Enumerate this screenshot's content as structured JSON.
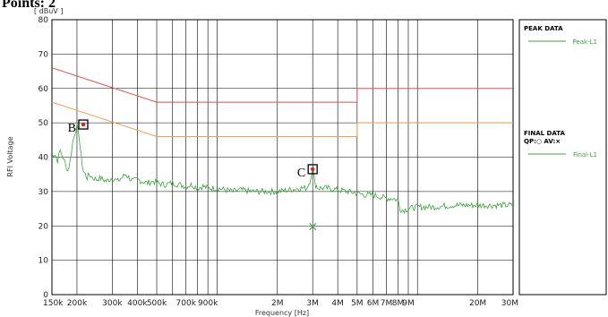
{
  "chart_data": {
    "type": "line",
    "title": "",
    "xlabel": "Frequency [Hz]",
    "ylabel": "RFI Voltage",
    "y_unit_label": "[ dBuV ]",
    "x_scale": "log",
    "xlim_hz": [
      150000,
      30000000
    ],
    "ylim": [
      0,
      80
    ],
    "grid": true,
    "y_ticks": [
      0,
      10,
      20,
      30,
      40,
      50,
      60,
      70,
      80
    ],
    "x_ticks": [
      {
        "hz": 150000,
        "label": "150k"
      },
      {
        "hz": 200000,
        "label": "200k"
      },
      {
        "hz": 300000,
        "label": "300k"
      },
      {
        "hz": 400000,
        "label": "400k"
      },
      {
        "hz": 500000,
        "label": "500k"
      },
      {
        "hz": 700000,
        "label": "700k"
      },
      {
        "hz": 900000,
        "label": "900k"
      },
      {
        "hz": 2000000,
        "label": "2M"
      },
      {
        "hz": 3000000,
        "label": "3M"
      },
      {
        "hz": 4000000,
        "label": "4M"
      },
      {
        "hz": 5000000,
        "label": "5M"
      },
      {
        "hz": 6000000,
        "label": "6M"
      },
      {
        "hz": 7000000,
        "label": "7M"
      },
      {
        "hz": 8000000,
        "label": "8M"
      },
      {
        "hz": 9000000,
        "label": "9M"
      },
      {
        "hz": 20000000,
        "label": "20M"
      },
      {
        "hz": 30000000,
        "label": "30M"
      }
    ],
    "limit_lines": [
      {
        "color": "#e05050",
        "points": [
          [
            150000,
            66
          ],
          [
            500000,
            56
          ],
          [
            5000000,
            56
          ],
          [
            5000000,
            60
          ],
          [
            30000000,
            60
          ]
        ]
      },
      {
        "color": "#f0a050",
        "points": [
          [
            150000,
            56
          ],
          [
            500000,
            46
          ],
          [
            5000000,
            46
          ],
          [
            5000000,
            50
          ],
          [
            30000000,
            50
          ]
        ]
      }
    ],
    "series": [
      {
        "name": "Peak-L1",
        "color": "#3aa63a",
        "x_hz": [
          150000,
          155000,
          160000,
          165000,
          170000,
          175000,
          180000,
          185000,
          190000,
          195000,
          200000,
          205000,
          210000,
          215000,
          220000,
          225000,
          230000,
          240000,
          250000,
          260000,
          280000,
          300000,
          320000,
          350000,
          380000,
          400000,
          420000,
          450000,
          480000,
          500000,
          550000,
          600000,
          650000,
          700000,
          750000,
          800000,
          850000,
          900000,
          1000000,
          1100000,
          1200000,
          1300000,
          1500000,
          1700000,
          2000000,
          2300000,
          2600000,
          2800000,
          2900000,
          2950000,
          3000000,
          3050000,
          3100000,
          3200000,
          3500000,
          4000000,
          4500000,
          5000000,
          5500000,
          6000000,
          6500000,
          7000000,
          7500000,
          8000000,
          8200000,
          8500000,
          9000000,
          10000000,
          12000000,
          15000000,
          18000000,
          20000000,
          23000000,
          26000000,
          30000000
        ],
        "y": [
          40,
          41,
          39,
          42,
          40,
          38,
          36,
          39,
          44,
          47,
          49,
          46,
          40,
          36,
          35,
          34,
          35,
          34,
          33.5,
          34,
          33,
          34,
          33,
          35,
          33,
          33.5,
          33,
          32.5,
          33,
          32.5,
          32,
          32.5,
          32,
          31.5,
          32,
          31,
          31.5,
          31,
          31,
          30.5,
          30,
          30.5,
          30,
          30,
          30,
          30.5,
          31,
          31,
          33,
          35,
          36.5,
          34,
          32,
          31,
          31,
          30.5,
          30,
          29.5,
          29,
          29,
          28.5,
          28,
          28,
          27.5,
          25,
          24.5,
          25,
          25.5,
          25.5,
          26,
          26,
          26,
          26,
          26,
          26
        ]
      }
    ],
    "final_data": {
      "head": "FINAL DATA",
      "note": "QP:○ AV:×",
      "points": [
        {
          "hz": 3000000,
          "y": 20,
          "symbol": "×"
        }
      ]
    },
    "markers": [
      {
        "label": "B",
        "hz": 215000,
        "y": 49.5
      },
      {
        "label": "C",
        "hz": 3000000,
        "y": 36.5
      }
    ],
    "legend": {
      "placement": "right",
      "peak_head": "PEAK DATA",
      "peak_entry": "Peak-L1",
      "final_head": "FINAL DATA",
      "final_note": "QP:○ AV:×",
      "final_entry": "Final-L1"
    }
  }
}
